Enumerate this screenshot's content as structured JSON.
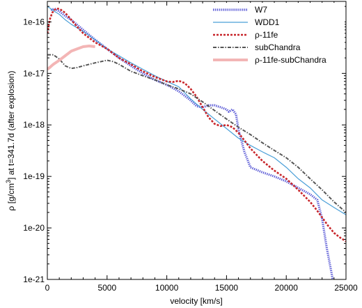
{
  "chart_data": {
    "type": "line",
    "title": "",
    "xlabel": "velocity [km/s]",
    "ylabel": {
      "pre": "ρ [g/cm",
      "sup": "3",
      "post": "]  at  t=341.7d  (after explosion)"
    },
    "xlim": [
      0,
      25000
    ],
    "ylim": [
      1e-21,
      2.5e-16
    ],
    "yscale": "log",
    "grid": false,
    "legend_position": "top-right",
    "x_ticks": [
      {
        "value": 0,
        "label": "0"
      },
      {
        "value": 5000,
        "label": "5000"
      },
      {
        "value": 10000,
        "label": "10000"
      },
      {
        "value": 15000,
        "label": "15000"
      },
      {
        "value": 20000,
        "label": "20000"
      },
      {
        "value": 25000,
        "label": "25000"
      }
    ],
    "y_ticks": [
      {
        "value": 1e-16,
        "label": "1e-16"
      },
      {
        "value": 1e-17,
        "label": "1e-17"
      },
      {
        "value": 1e-18,
        "label": "1e-18"
      },
      {
        "value": 1e-19,
        "label": "1e-19"
      },
      {
        "value": 1e-20,
        "label": "1e-20"
      },
      {
        "value": 1e-21,
        "label": "1e-21"
      }
    ],
    "series": [
      {
        "name": "W7",
        "color": "#5b5bd6",
        "style": "dotted-thick",
        "x": [
          300,
          600,
          1000,
          1500,
          2000,
          3000,
          4000,
          5000,
          6000,
          7000,
          8000,
          9000,
          10000,
          11000,
          12000,
          12500,
          13000,
          13500,
          14000,
          14500,
          15000,
          15200,
          15500,
          15800,
          16000,
          16500,
          17000,
          18000,
          19000,
          20000,
          21000,
          22000,
          22600,
          23000,
          23400,
          23800,
          24000
        ],
        "y": [
          1.7e-16,
          1.8e-16,
          1.6e-16,
          1.3e-16,
          1.1e-16,
          7e-17,
          4.5e-17,
          3e-17,
          2e-17,
          1.4e-17,
          1e-17,
          7.5e-18,
          6e-18,
          4.5e-18,
          3e-18,
          2.3e-18,
          2.2e-18,
          2.4e-18,
          2.4e-18,
          2.2e-18,
          2e-18,
          1.8e-18,
          2e-18,
          1.6e-18,
          8e-19,
          3e-19,
          1.5e-19,
          1.2e-19,
          1e-19,
          8e-20,
          6e-20,
          4.5e-20,
          3.5e-20,
          1.5e-20,
          4e-21,
          1.3e-21,
          7e-22
        ]
      },
      {
        "name": "WDD1",
        "color": "#4a9fd8",
        "style": "solid",
        "x": [
          0,
          300,
          600,
          1000,
          1500,
          2000,
          3000,
          4000,
          5000,
          6000,
          7000,
          8000,
          9000,
          10000,
          11000,
          11500,
          12000,
          13000,
          14000,
          15000,
          16000,
          17000,
          18000,
          19000,
          20000,
          21000,
          22000,
          23000,
          24000,
          25000
        ],
        "y": [
          2e-16,
          1.8e-16,
          1.6e-16,
          1.4e-16,
          1.1e-16,
          9e-17,
          6.5e-17,
          4.5e-17,
          3e-17,
          2.2e-17,
          1.6e-17,
          1.2e-17,
          9e-18,
          7e-18,
          5.5e-18,
          4.2e-18,
          3.2e-18,
          2e-18,
          1.3e-18,
          8.5e-19,
          5.5e-19,
          4e-19,
          3e-19,
          2.3e-19,
          1.5e-19,
          9e-20,
          6e-20,
          3.5e-20,
          2.5e-20,
          1.8e-20
        ]
      },
      {
        "name": "ρ-11fe",
        "color": "#c8262b",
        "style": "dashed-thick",
        "x": [
          0,
          200,
          400,
          700,
          1000,
          1500,
          2000,
          2500,
          3000,
          4000,
          5000,
          6000,
          7000,
          8000,
          9000,
          10000,
          10500,
          11000,
          11500,
          12000,
          12500,
          13000,
          13500,
          14000,
          14500,
          15000,
          15500,
          16000,
          16500,
          17000,
          18000,
          19000,
          20000,
          21000,
          22000,
          22500,
          23000,
          23500,
          24000,
          24500,
          25000
        ],
        "y": [
          6e-17,
          1.1e-16,
          1.5e-16,
          1.8e-16,
          1.8e-16,
          1.5e-16,
          1.1e-16,
          8e-17,
          6e-17,
          4e-17,
          3e-17,
          2e-17,
          1.5e-17,
          1.1e-17,
          8.5e-18,
          7e-18,
          6.8e-18,
          7.2e-18,
          6.5e-18,
          5e-18,
          3.5e-18,
          2.2e-18,
          1.4e-18,
          1.05e-18,
          9.5e-19,
          1e-18,
          9e-19,
          7e-19,
          5e-19,
          3.5e-19,
          2e-19,
          1.3e-19,
          9e-20,
          5.5e-20,
          3.2e-20,
          2.3e-20,
          1.6e-20,
          1.1e-20,
          8e-21,
          6.5e-21,
          5.5e-21
        ]
      },
      {
        "name": "subChandra",
        "color": "#555555",
        "style": "dashdot",
        "x": [
          0,
          500,
          1000,
          1500,
          2000,
          2500,
          3000,
          3500,
          4000,
          5000,
          5500,
          6000,
          7000,
          8000,
          9000,
          10000,
          11000,
          12000,
          13000,
          14000,
          15000,
          16000,
          17000,
          18000,
          19000,
          20000,
          21000,
          22000,
          23000,
          24000,
          25000
        ],
        "y": [
          2.3e-17,
          2.3e-17,
          1.9e-17,
          1.4e-17,
          1.25e-17,
          1.3e-17,
          1.4e-17,
          1.5e-17,
          1.6e-17,
          1.8e-17,
          1.7e-17,
          1.5e-17,
          1.1e-17,
          9e-18,
          7.5e-18,
          6e-18,
          5e-18,
          4e-18,
          2.8e-18,
          1.9e-18,
          1.3e-18,
          9e-19,
          6.5e-19,
          4.5e-19,
          3.2e-19,
          2.3e-19,
          1.5e-19,
          9e-20,
          5.5e-20,
          3.2e-20,
          2e-20
        ]
      },
      {
        "name": "ρ-11fe-subChandra",
        "color": "#f3b5b5",
        "style": "solid-thick",
        "x": [
          0,
          200,
          500,
          1000,
          1500,
          2000,
          2500,
          3000,
          3500,
          4000
        ],
        "y": [
          1.2e-17,
          1.3e-17,
          1.5e-17,
          1.8e-17,
          2.2e-17,
          2.7e-17,
          3e-17,
          3.3e-17,
          3.4e-17,
          3.3e-17
        ]
      }
    ]
  }
}
